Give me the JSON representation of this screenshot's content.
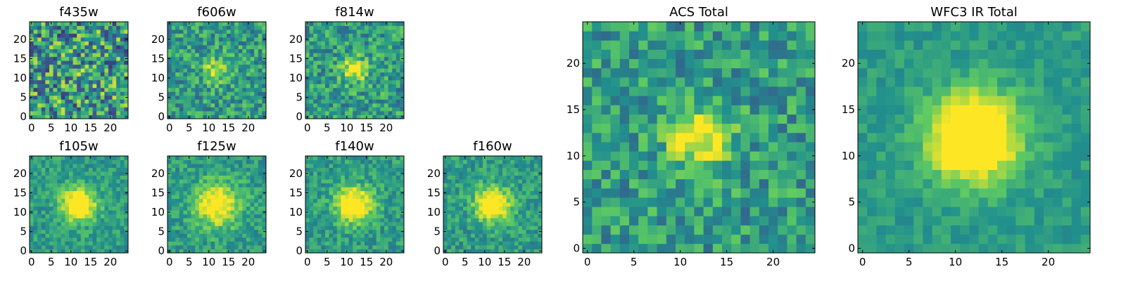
{
  "chart_data": [
    {
      "type": "heatmap",
      "title": "f435w",
      "xlim": [
        0,
        25
      ],
      "ylim": [
        0,
        25
      ],
      "xticks": [
        0,
        5,
        10,
        15,
        20
      ],
      "yticks": [
        0,
        5,
        10,
        15,
        20
      ],
      "grid_size": 25,
      "source_max_row": 12,
      "source_max_col": 12,
      "source_strength": 0.05,
      "source_width": 3,
      "noise": 0.75,
      "seed": 11
    },
    {
      "type": "heatmap",
      "title": "f606w",
      "xlim": [
        0,
        25
      ],
      "ylim": [
        0,
        25
      ],
      "xticks": [
        0,
        5,
        10,
        15,
        20
      ],
      "yticks": [
        0,
        5,
        10,
        15,
        20
      ],
      "grid_size": 25,
      "source_max_row": 12,
      "source_max_col": 12,
      "source_strength": 0.35,
      "source_width": 2.3,
      "noise": 0.45,
      "seed": 23
    },
    {
      "type": "heatmap",
      "title": "f814w",
      "xlim": [
        0,
        25
      ],
      "ylim": [
        0,
        25
      ],
      "xticks": [
        0,
        5,
        10,
        15,
        20
      ],
      "yticks": [
        0,
        5,
        10,
        15,
        20
      ],
      "grid_size": 25,
      "source_max_row": 12,
      "source_max_col": 12,
      "source_strength": 0.45,
      "source_width": 2.3,
      "noise": 0.45,
      "seed": 37
    },
    {
      "type": "heatmap",
      "title": "f105w",
      "xlim": [
        0,
        25
      ],
      "ylim": [
        0,
        25
      ],
      "xticks": [
        0,
        5,
        10,
        15,
        20
      ],
      "yticks": [
        0,
        5,
        10,
        15,
        20
      ],
      "grid_size": 25,
      "source_max_row": 12,
      "source_max_col": 12,
      "source_strength": 0.7,
      "source_width": 3,
      "noise": 0.28,
      "seed": 41
    },
    {
      "type": "heatmap",
      "title": "f125w",
      "xlim": [
        0,
        25
      ],
      "ylim": [
        0,
        25
      ],
      "xticks": [
        0,
        5,
        10,
        15,
        20
      ],
      "yticks": [
        0,
        5,
        10,
        15,
        20
      ],
      "grid_size": 25,
      "source_max_row": 12,
      "source_max_col": 12,
      "source_strength": 0.55,
      "source_width": 4,
      "noise": 0.3,
      "seed": 53
    },
    {
      "type": "heatmap",
      "title": "f140w",
      "xlim": [
        0,
        25
      ],
      "ylim": [
        0,
        25
      ],
      "xticks": [
        0,
        5,
        10,
        15,
        20
      ],
      "yticks": [
        0,
        5,
        10,
        15,
        20
      ],
      "grid_size": 25,
      "source_max_row": 12,
      "source_max_col": 12,
      "source_strength": 0.65,
      "source_width": 3.2,
      "noise": 0.3,
      "seed": 67
    },
    {
      "type": "heatmap",
      "title": "f160w",
      "xlim": [
        0,
        25
      ],
      "ylim": [
        0,
        25
      ],
      "xticks": [
        0,
        5,
        10,
        15,
        20
      ],
      "yticks": [
        0,
        5,
        10,
        15,
        20
      ],
      "grid_size": 25,
      "source_max_row": 12,
      "source_max_col": 12,
      "source_strength": 0.7,
      "source_width": 3,
      "noise": 0.3,
      "seed": 79
    },
    {
      "type": "heatmap",
      "title": "ACS Total",
      "xlim": [
        0,
        25
      ],
      "ylim": [
        0,
        25
      ],
      "xticks": [
        0,
        5,
        10,
        15,
        20
      ],
      "yticks": [
        0,
        5,
        10,
        15,
        20
      ],
      "grid_size": 25,
      "source_max_row": 12,
      "source_max_col": 12,
      "source_strength": 0.5,
      "source_width": 2.3,
      "noise": 0.42,
      "seed": 97
    },
    {
      "type": "heatmap",
      "title": "WFC3 IR Total",
      "xlim": [
        0,
        25
      ],
      "ylim": [
        0,
        25
      ],
      "xticks": [
        0,
        5,
        10,
        15,
        20
      ],
      "yticks": [
        0,
        5,
        10,
        15,
        20
      ],
      "grid_size": 25,
      "source_max_row": 12,
      "source_max_col": 12,
      "source_strength": 0.9,
      "source_width": 3.2,
      "noise": 0.18,
      "seed": 113
    }
  ],
  "colormap": [
    "#440154",
    "#3b528b",
    "#21908d",
    "#5dc963",
    "#fde725"
  ]
}
